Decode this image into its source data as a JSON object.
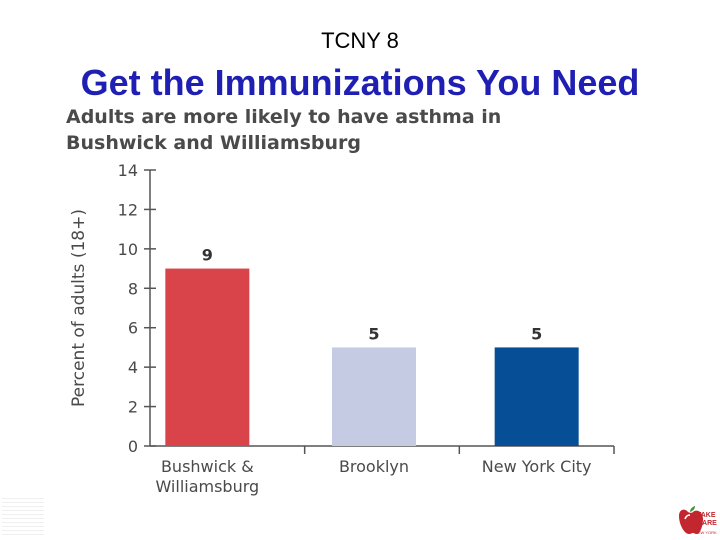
{
  "header": {
    "label": "TCNY 8"
  },
  "title": {
    "text": "Get the Immunizations You Need"
  },
  "colors": {
    "title": "#1f1fb4",
    "text": "#4a4a4a",
    "axis": "#555555",
    "bar1": "#d9434a",
    "bar2": "#c4cbe2",
    "bar3": "#064e96",
    "logo": "#c2262e"
  },
  "logo": {
    "name": "take-care-new-york-logo",
    "line1": "TAKE",
    "line2": "CARE",
    "line3": "NEW YORK"
  },
  "chart_data": {
    "type": "bar",
    "title": "Adults are more likely to have asthma in Bushwick and Williamsburg",
    "xlabel": "",
    "ylabel": "Percent of adults (18+)",
    "categories": [
      "Bushwick & Williamsburg",
      "Brooklyn",
      "New York City"
    ],
    "category_lines": [
      [
        "Bushwick &",
        "Williamsburg"
      ],
      [
        "Brooklyn"
      ],
      [
        "New York City"
      ]
    ],
    "values": [
      9,
      5,
      5
    ],
    "value_labels": [
      "9",
      "5",
      "5"
    ],
    "bar_colors": [
      "#d9434a",
      "#c4cbe2",
      "#064e96"
    ],
    "ylim": [
      0,
      14
    ],
    "yticks": [
      0,
      2,
      4,
      6,
      8,
      10,
      12,
      14
    ],
    "grid": false,
    "legend": "none"
  }
}
